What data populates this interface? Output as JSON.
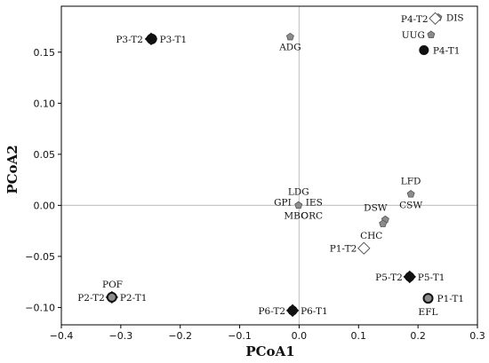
{
  "chart_data": {
    "type": "scatter",
    "xlabel": "PCoA1",
    "ylabel": "PCoA2",
    "xlim": [
      -0.4,
      0.3
    ],
    "ylim": [
      -0.117,
      0.195
    ],
    "x_ticks": [
      -0.4,
      -0.3,
      -0.2,
      -0.1,
      0.0,
      0.1,
      0.2,
      0.3
    ],
    "x_tick_labels": [
      "−0.4",
      "−0.3",
      "−0.2",
      "−0.1",
      "0.0",
      "0.1",
      "0.2",
      "0.3"
    ],
    "y_ticks": [
      -0.1,
      -0.05,
      0.0,
      0.05,
      0.1,
      0.15
    ],
    "y_tick_labels": [
      "−0.10",
      "−0.05",
      "0.00",
      "0.05",
      "0.10",
      "0.15"
    ],
    "reference_lines": {
      "x": 0,
      "y": 0
    },
    "grid": false,
    "samples": [
      {
        "label": "P1-T1",
        "x": 0.217,
        "y": -0.091,
        "marker": "circle",
        "style": "dark-ring"
      },
      {
        "label": "P1-T2",
        "x": 0.109,
        "y": -0.042,
        "marker": "diamond",
        "style": "open"
      },
      {
        "label": "P2-T1",
        "x": -0.315,
        "y": -0.09,
        "marker": "diamond",
        "style": "dark-ring"
      },
      {
        "label": "P2-T2",
        "x": -0.315,
        "y": -0.09,
        "marker": "circle",
        "style": "dark-ring"
      },
      {
        "label": "P3-T1",
        "x": -0.248,
        "y": 0.163,
        "marker": "circle",
        "style": "dark-ring"
      },
      {
        "label": "P3-T2",
        "x": -0.249,
        "y": 0.163,
        "marker": "diamond",
        "style": "solid"
      },
      {
        "label": "P4-T1",
        "x": 0.21,
        "y": 0.152,
        "marker": "circle",
        "style": "solid"
      },
      {
        "label": "P4-T2",
        "x": 0.229,
        "y": 0.183,
        "marker": "diamond",
        "style": "open"
      },
      {
        "label": "P5-T1",
        "x": 0.186,
        "y": -0.07,
        "marker": "circle",
        "style": "solid"
      },
      {
        "label": "P5-T2",
        "x": 0.186,
        "y": -0.07,
        "marker": "diamond",
        "style": "solid"
      },
      {
        "label": "P6-T1",
        "x": -0.011,
        "y": -0.103,
        "marker": "circle",
        "style": "solid"
      },
      {
        "label": "P6-T2",
        "x": -0.011,
        "y": -0.103,
        "marker": "diamond",
        "style": "solid"
      }
    ],
    "species": [
      {
        "label": "ADG",
        "x": -0.015,
        "y": 0.165
      },
      {
        "label": "DIS",
        "x": 0.234,
        "y": 0.184
      },
      {
        "label": "UUG",
        "x": 0.222,
        "y": 0.167
      },
      {
        "label": "POF",
        "x": -0.314,
        "y": -0.089
      },
      {
        "label": "LDG",
        "x": -0.001,
        "y": 0.0
      },
      {
        "label": "GPI",
        "x": -0.001,
        "y": 0.0
      },
      {
        "label": "IES",
        "x": -0.001,
        "y": 0.0
      },
      {
        "label": "MBC",
        "x": -0.001,
        "y": 0.0
      },
      {
        "label": "ORC",
        "x": -0.001,
        "y": 0.0
      },
      {
        "label": "LFD",
        "x": 0.188,
        "y": 0.011
      },
      {
        "label": "CSW",
        "x": 0.188,
        "y": 0.011
      },
      {
        "label": "DSW",
        "x": 0.145,
        "y": -0.014
      },
      {
        "label": "CHC",
        "x": 0.141,
        "y": -0.018
      },
      {
        "label": "EFL",
        "x": 0.217,
        "y": -0.091
      }
    ]
  }
}
